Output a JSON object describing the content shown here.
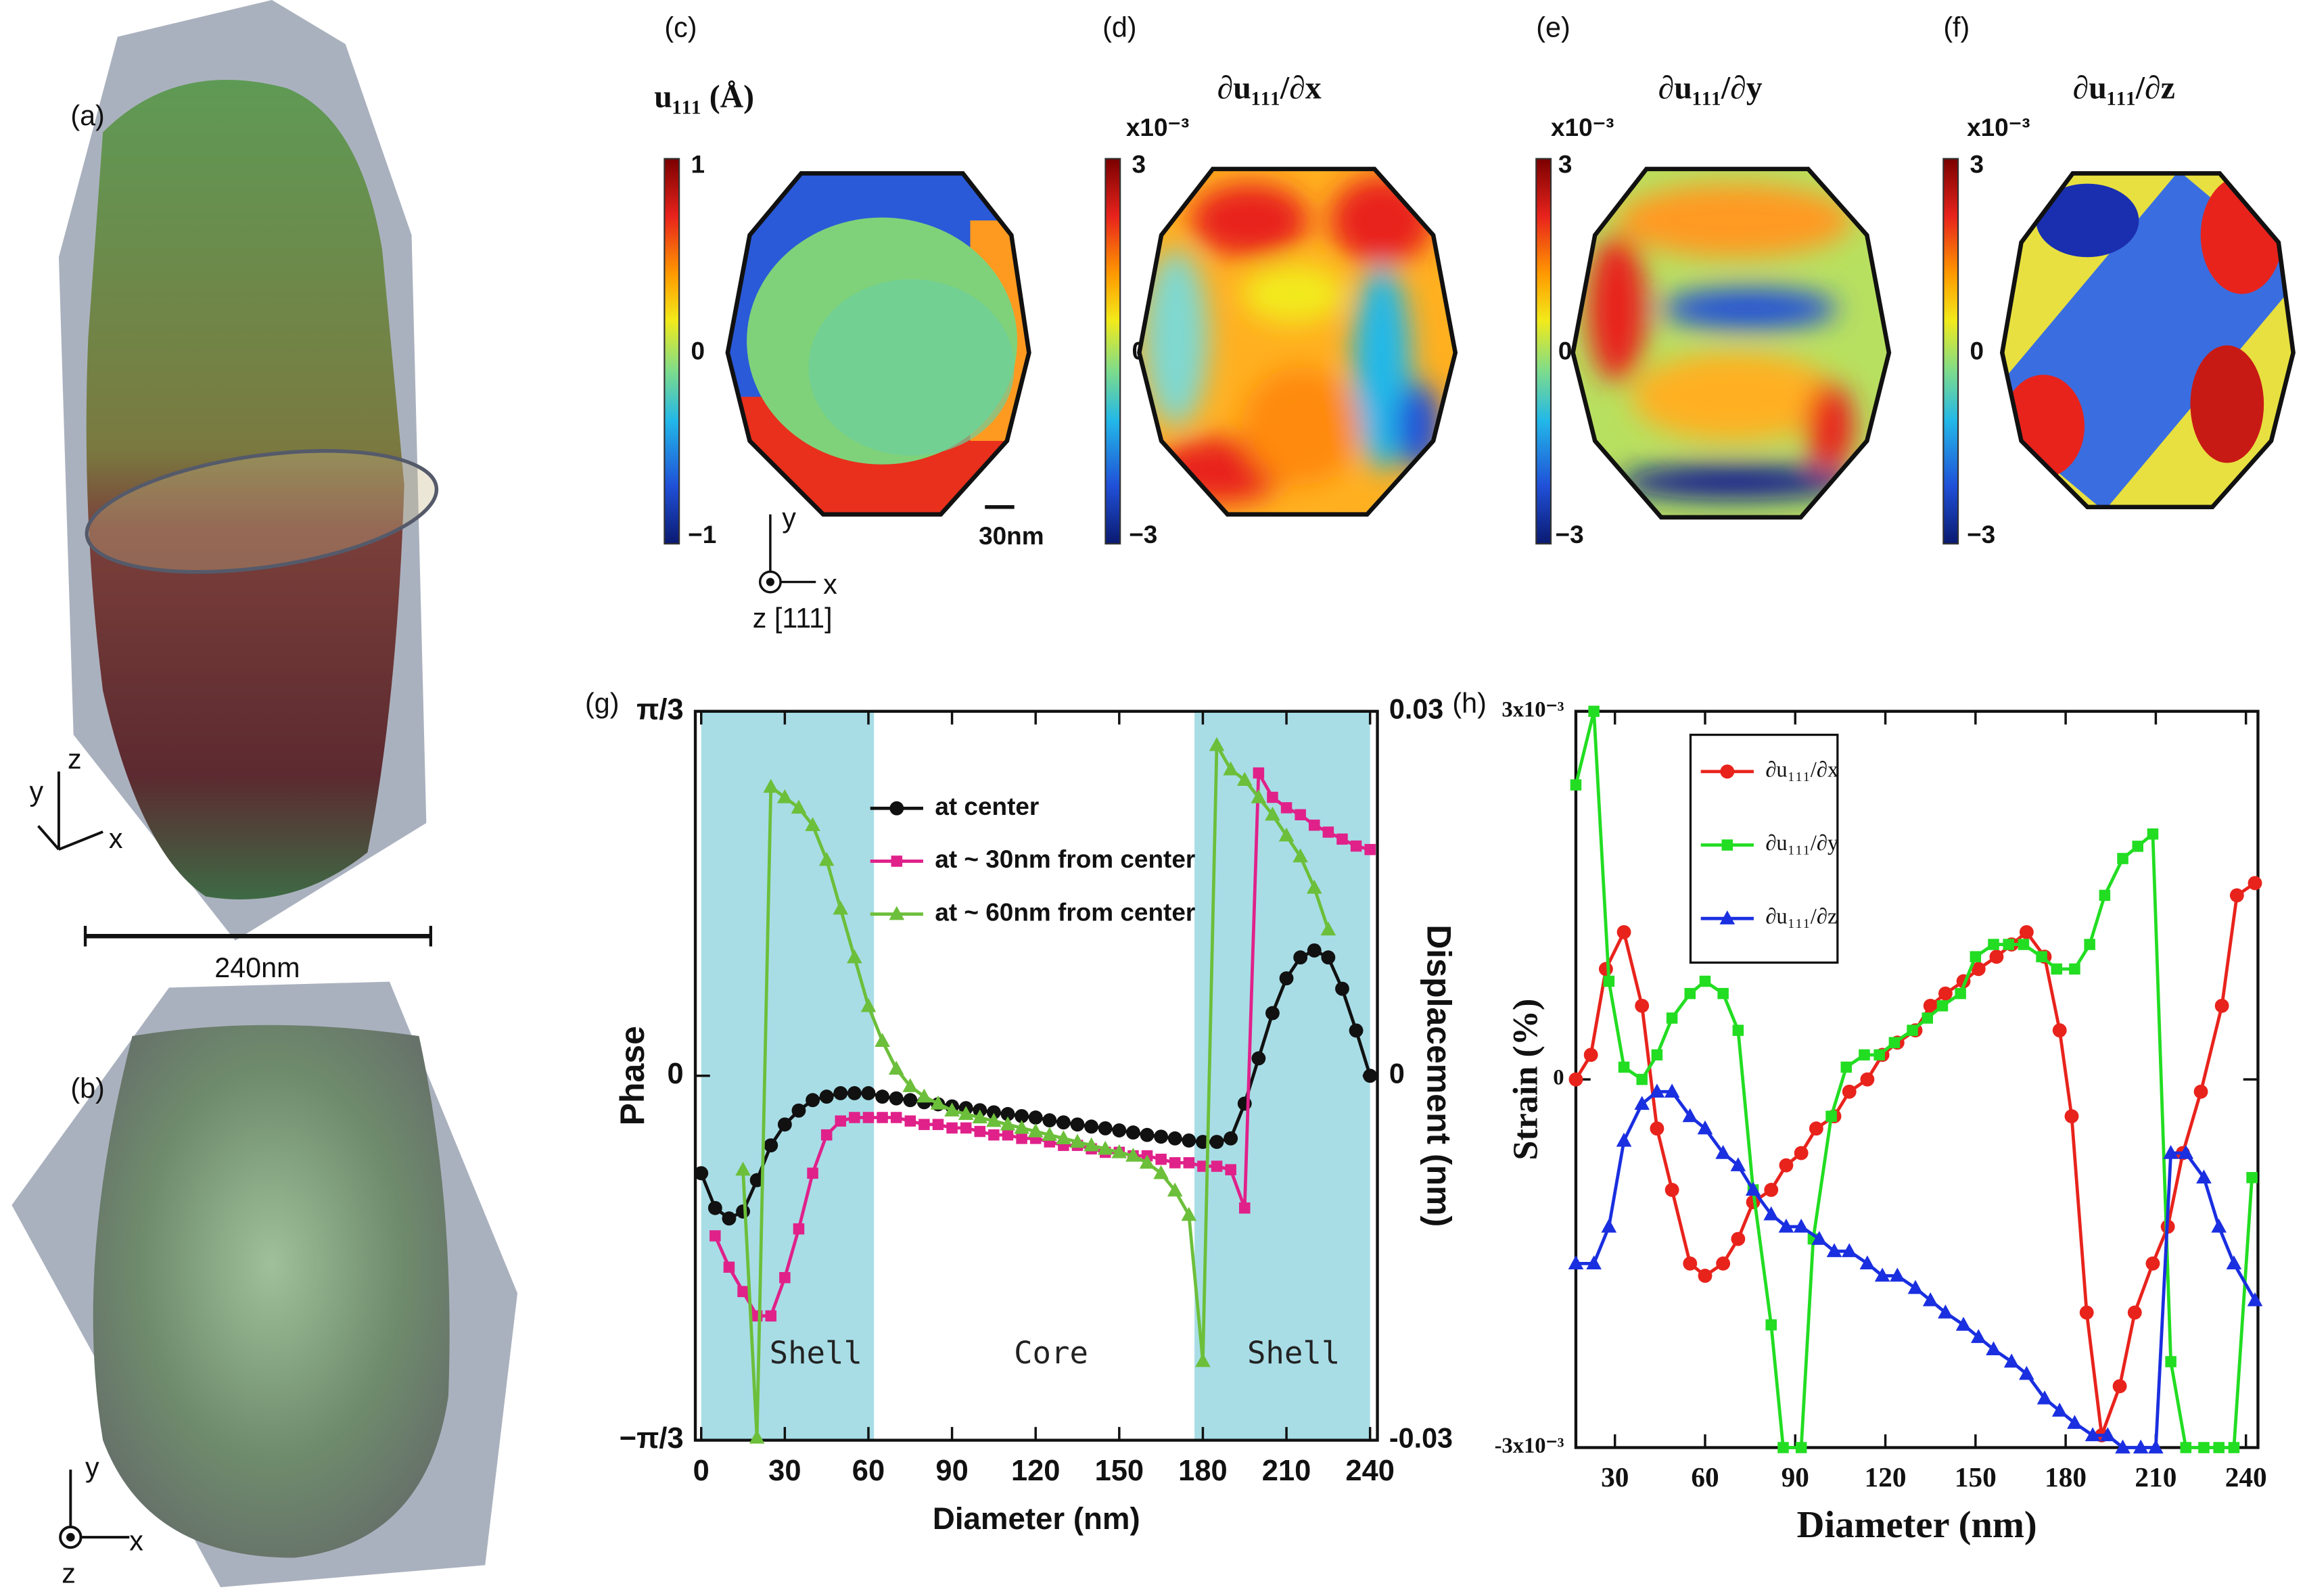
{
  "panels": {
    "a": {
      "label": "(a)",
      "scale_bar": "240nm",
      "axes": [
        "z",
        "y",
        "x"
      ]
    },
    "b": {
      "label": "(b)",
      "axes": [
        "y",
        "x",
        "z"
      ]
    },
    "c": {
      "label": "(c)",
      "title": "u₁₁₁ (Å)",
      "colorbar_ticks": [
        "1",
        "0",
        "−1"
      ],
      "scale_bar": "30nm",
      "axes": [
        "y",
        "x",
        "z [111]"
      ]
    },
    "d": {
      "label": "(d)",
      "title": "∂u₁₁₁/∂x",
      "multiplier": "x10⁻³",
      "colorbar_ticks": [
        "3",
        "0",
        "−3"
      ]
    },
    "e": {
      "label": "(e)",
      "title": "∂u₁₁₁/∂y",
      "multiplier": "x10⁻³",
      "colorbar_ticks": [
        "3",
        "0",
        "−3"
      ]
    },
    "f": {
      "label": "(f)",
      "title": "∂u₁₁₁/∂z",
      "multiplier": "x10⁻³",
      "colorbar_ticks": [
        "3",
        "0",
        "−3"
      ]
    }
  },
  "chart_data": [
    {
      "type": "line",
      "label": "(g)",
      "xlabel": "Diameter (nm)",
      "ylabel": "Phase",
      "y2label": "Displacement (nm)",
      "xlim": [
        0,
        240
      ],
      "xticks": [
        0,
        30,
        60,
        90,
        120,
        150,
        180,
        210,
        240
      ],
      "ylim": [
        -1.0472,
        1.0472
      ],
      "yticks": [
        {
          "value": -1.0472,
          "label": "−π/3"
        },
        0,
        {
          "value": 1.0472,
          "label": "π/3"
        }
      ],
      "y2lim": [
        -0.03,
        0.03
      ],
      "y2ticks": [
        -0.03,
        0,
        0.03
      ],
      "shaded_regions": [
        [
          0,
          62
        ],
        [
          177,
          240
        ]
      ],
      "shade_color": "#a8dde6",
      "annotations": [
        "Shell",
        "Core",
        "Shell"
      ],
      "legend": "upper center",
      "series": [
        {
          "name": "at center",
          "color": "#111111",
          "marker": "circle",
          "x": [
            0,
            5,
            10,
            15,
            20,
            25,
            30,
            35,
            40,
            45,
            50,
            55,
            60,
            65,
            70,
            75,
            80,
            85,
            90,
            95,
            100,
            105,
            110,
            115,
            120,
            125,
            130,
            135,
            140,
            145,
            150,
            155,
            160,
            165,
            170,
            175,
            180,
            185,
            190,
            195,
            200,
            205,
            210,
            215,
            220,
            225,
            230,
            235,
            240
          ],
          "values": [
            -0.28,
            -0.38,
            -0.41,
            -0.39,
            -0.3,
            -0.2,
            -0.14,
            -0.1,
            -0.07,
            -0.06,
            -0.05,
            -0.05,
            -0.05,
            -0.06,
            -0.065,
            -0.07,
            -0.076,
            -0.082,
            -0.088,
            -0.093,
            -0.099,
            -0.105,
            -0.11,
            -0.116,
            -0.12,
            -0.128,
            -0.134,
            -0.14,
            -0.146,
            -0.151,
            -0.157,
            -0.163,
            -0.17,
            -0.175,
            -0.18,
            -0.186,
            -0.19,
            -0.19,
            -0.18,
            -0.08,
            0.05,
            0.18,
            0.28,
            0.34,
            0.36,
            0.34,
            0.25,
            0.13,
            0
          ]
        },
        {
          "name": "at ~ 30nm from center",
          "color": "#e0218a",
          "marker": "square",
          "x": [
            5,
            10,
            15,
            20,
            25,
            30,
            35,
            40,
            45,
            50,
            55,
            60,
            65,
            70,
            75,
            80,
            85,
            90,
            95,
            100,
            105,
            110,
            115,
            120,
            125,
            130,
            135,
            140,
            145,
            150,
            155,
            160,
            165,
            170,
            175,
            180,
            185,
            190,
            195,
            200,
            205,
            210,
            215,
            220,
            225,
            230,
            235,
            240
          ],
          "values": [
            -0.46,
            -0.55,
            -0.62,
            -0.69,
            -0.69,
            -0.58,
            -0.44,
            -0.28,
            -0.17,
            -0.13,
            -0.12,
            -0.12,
            -0.12,
            -0.12,
            -0.13,
            -0.14,
            -0.14,
            -0.15,
            -0.15,
            -0.16,
            -0.17,
            -0.17,
            -0.18,
            -0.18,
            -0.19,
            -0.2,
            -0.2,
            -0.21,
            -0.22,
            -0.22,
            -0.23,
            -0.23,
            -0.24,
            -0.25,
            -0.25,
            -0.26,
            -0.26,
            -0.27,
            -0.38,
            0.87,
            0.8,
            0.77,
            0.75,
            0.72,
            0.7,
            0.68,
            0.66,
            0.65
          ]
        },
        {
          "name": "at ~ 60nm from center",
          "color": "#6cbf3a",
          "marker": "triangle",
          "x": [
            15,
            20,
            25,
            30,
            35,
            40,
            45,
            50,
            55,
            60,
            65,
            70,
            75,
            80,
            85,
            90,
            95,
            100,
            105,
            110,
            115,
            120,
            125,
            130,
            135,
            140,
            145,
            150,
            155,
            160,
            165,
            170,
            175,
            180,
            185,
            190,
            195,
            200,
            205,
            210,
            215,
            220,
            225
          ],
          "values": [
            -0.27,
            -1.04,
            0.83,
            0.8,
            0.77,
            0.72,
            0.62,
            0.48,
            0.34,
            0.2,
            0.1,
            0.02,
            -0.03,
            -0.06,
            -0.08,
            -0.1,
            -0.11,
            -0.12,
            -0.13,
            -0.14,
            -0.15,
            -0.16,
            -0.17,
            -0.18,
            -0.19,
            -0.2,
            -0.21,
            -0.22,
            -0.23,
            -0.25,
            -0.28,
            -0.33,
            -0.4,
            -0.82,
            0.95,
            0.88,
            0.85,
            0.8,
            0.75,
            0.69,
            0.63,
            0.54,
            0.42
          ]
        }
      ]
    },
    {
      "type": "line",
      "label": "(h)",
      "xlabel": "Diameter (nm)",
      "ylabel": "Strain (%)",
      "xlim": [
        17,
        244
      ],
      "xticks": [
        30,
        60,
        90,
        120,
        150,
        180,
        210,
        240
      ],
      "ylim": [
        -0.003,
        0.003
      ],
      "yticks": [
        {
          "value": -0.003,
          "label": "-3x10⁻³"
        },
        0,
        {
          "value": 0.003,
          "label": "3x10⁻³"
        }
      ],
      "legend": "upper left",
      "series": [
        {
          "name": "∂u₁₁₁/∂x",
          "color": "#e8231c",
          "marker": "circle",
          "x": [
            17,
            22,
            27,
            33,
            39,
            44,
            49,
            55,
            60,
            66,
            71,
            76,
            82,
            87,
            92,
            97,
            103,
            108,
            114,
            119,
            124,
            130,
            135,
            140,
            146,
            151,
            157,
            162,
            167,
            173,
            178,
            182,
            187,
            192,
            198,
            203,
            209,
            214,
            219,
            225,
            232,
            237,
            243
          ],
          "values": [
            0,
            0.0002,
            0.0009,
            0.0012,
            0.0006,
            -0.0004,
            -0.0009,
            -0.0015,
            -0.0016,
            -0.0015,
            -0.0013,
            -0.001,
            -0.0009,
            -0.0007,
            -0.0006,
            -0.0004,
            -0.0003,
            -0.0001,
            0,
            0.0002,
            0.0003,
            0.0004,
            0.0006,
            0.0007,
            0.0008,
            0.0009,
            0.001,
            0.0011,
            0.0012,
            0.001,
            0.0004,
            -0.0003,
            -0.0019,
            -0.0029,
            -0.0025,
            -0.0019,
            -0.0015,
            -0.0012,
            -0.0006,
            -0.0001,
            0.0006,
            0.0015,
            0.0016
          ]
        },
        {
          "name": "∂u₁₁₁/∂y",
          "color": "#22dd22",
          "marker": "square",
          "x": [
            17,
            23,
            28,
            33,
            39,
            44,
            49,
            55,
            60,
            66,
            71,
            76,
            82,
            86,
            92,
            96,
            102,
            107,
            113,
            118,
            123,
            129,
            134,
            139,
            145,
            150,
            156,
            161,
            166,
            172,
            177,
            183,
            188,
            193,
            199,
            204,
            209,
            215,
            220,
            226,
            231,
            236,
            242
          ],
          "values": [
            0.0024,
            0.003,
            0.0008,
            0.0001,
            0,
            0.0002,
            0.0005,
            0.0007,
            0.0008,
            0.0007,
            0.0004,
            -0.0009,
            -0.002,
            -0.003,
            -0.003,
            -0.0013,
            -0.0003,
            0.0001,
            0.0002,
            0.0002,
            0.0003,
            0.0004,
            0.0005,
            0.0006,
            0.0007,
            0.001,
            0.0011,
            0.0011,
            0.0011,
            0.001,
            0.0009,
            0.0009,
            0.0011,
            0.0015,
            0.0018,
            0.0019,
            0.002,
            -0.0023,
            -0.003,
            -0.003,
            -0.003,
            -0.003,
            -0.0008
          ]
        },
        {
          "name": "∂u₁₁₁/∂z",
          "color": "#1a2fe0",
          "marker": "triangle",
          "x": [
            17,
            23,
            28,
            33,
            39,
            44,
            49,
            55,
            60,
            66,
            71,
            76,
            82,
            87,
            92,
            98,
            103,
            108,
            114,
            119,
            124,
            130,
            135,
            140,
            146,
            151,
            156,
            162,
            167,
            173,
            178,
            183,
            189,
            194,
            199,
            205,
            210,
            215,
            220,
            226,
            231,
            236,
            243
          ],
          "values": [
            -0.0015,
            -0.0015,
            -0.0012,
            -0.0005,
            -0.0002,
            -0.0001,
            -0.0001,
            -0.0003,
            -0.0004,
            -0.0006,
            -0.0007,
            -0.0009,
            -0.0011,
            -0.0012,
            -0.0012,
            -0.0013,
            -0.0014,
            -0.0014,
            -0.0015,
            -0.0016,
            -0.0016,
            -0.0017,
            -0.0018,
            -0.0019,
            -0.002,
            -0.0021,
            -0.0022,
            -0.0023,
            -0.0024,
            -0.0026,
            -0.0027,
            -0.0028,
            -0.0029,
            -0.0029,
            -0.003,
            -0.003,
            -0.003,
            -0.0006,
            -0.0006,
            -0.0008,
            -0.0012,
            -0.0015,
            -0.0018
          ]
        }
      ]
    }
  ]
}
